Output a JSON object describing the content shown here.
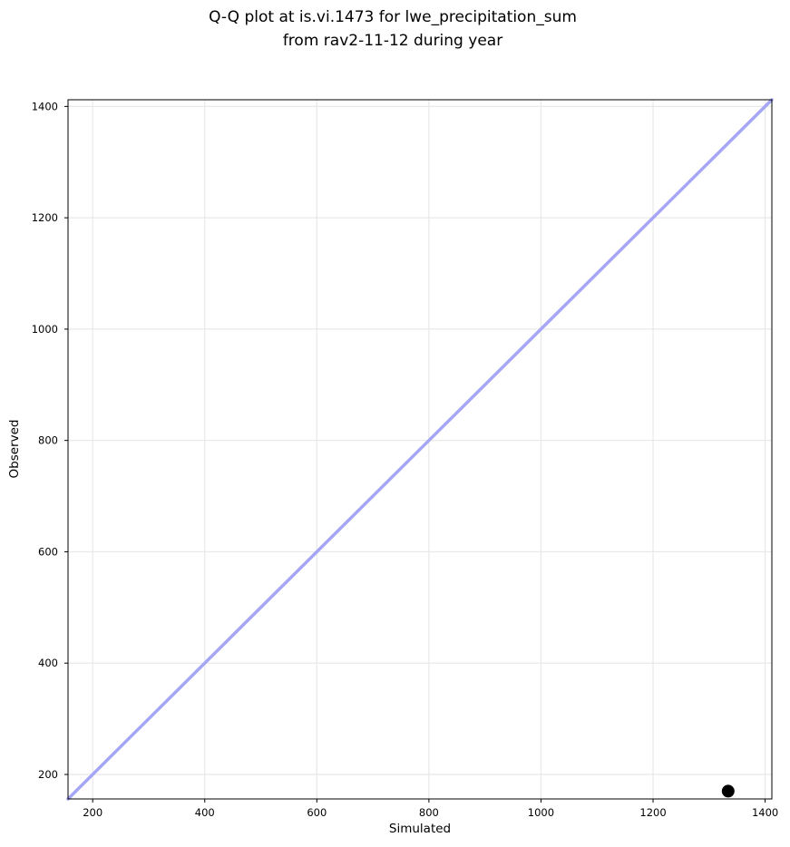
{
  "chart_data": {
    "type": "scatter",
    "title_lines": [
      "Q-Q plot at is.vi.1473 for lwe_precipitation_sum",
      "from rav2-11-12 during year"
    ],
    "title": "Q-Q plot at is.vi.1473 for lwe_precipitation_sum\nfrom rav2-11-12 during year",
    "xlabel": "Simulated",
    "ylabel": "Observed",
    "xlim": [
      156,
      1412
    ],
    "ylim": [
      156,
      1412
    ],
    "x_ticks": [
      200,
      400,
      600,
      800,
      1000,
      1200,
      1400
    ],
    "y_ticks": [
      200,
      400,
      600,
      800,
      1000,
      1200,
      1400
    ],
    "grid": true,
    "legend": "none",
    "identity_line": {
      "from": [
        156,
        156
      ],
      "to": [
        1412,
        1412
      ],
      "width": 3.5
    },
    "points": [
      {
        "x": 1334,
        "y": 170,
        "radius": 7
      }
    ],
    "colors": {
      "line": "#a6a6f7",
      "point": "#000000",
      "grid": "#e8e8e8",
      "spine": "#000000",
      "background": "#ffffff"
    }
  }
}
